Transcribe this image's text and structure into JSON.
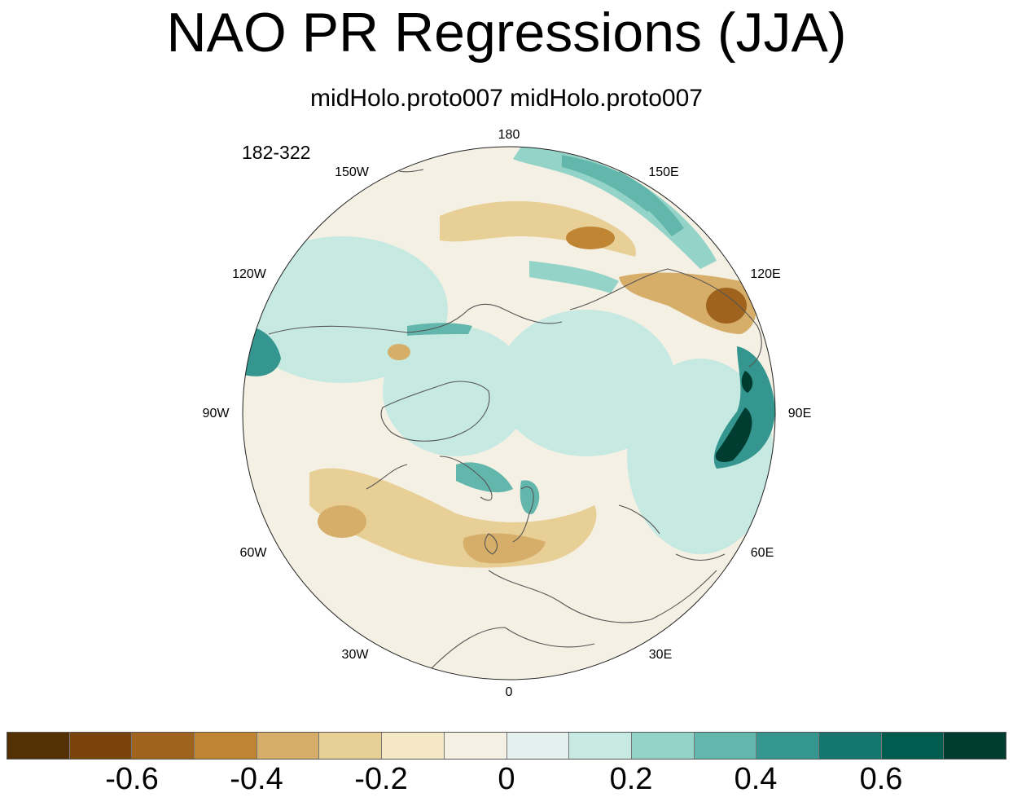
{
  "title": "NAO PR Regressions (JJA)",
  "subtitle": "midHolo.proto007  midHolo.proto007",
  "period_label": "182-322",
  "longitude_labels": [
    "180",
    "150E",
    "120E",
    "90E",
    "60E",
    "30E",
    "0",
    "30W",
    "60W",
    "90W",
    "120W",
    "150W"
  ],
  "colorbar": {
    "colors": [
      "#543005",
      "#7b430c",
      "#a0631d",
      "#c08533",
      "#d6ae6a",
      "#e8cf96",
      "#f5e8c4",
      "#f5f0e4",
      "#e3f0ee",
      "#c6e9e2",
      "#93d3c8",
      "#63b6ab",
      "#34968e",
      "#14766e",
      "#015c50",
      "#003c30"
    ],
    "tick_labels": [
      "-0.6",
      "-0.4",
      "-0.2",
      "0",
      "0.2",
      "0.4",
      "0.6"
    ]
  },
  "map": {
    "projection": "north polar stereographic",
    "background": "#f5f0e4",
    "coast_color": "#555555",
    "regions": [
      {
        "name": "north-pacific-wet-band",
        "color": "#93d3c8"
      },
      {
        "name": "north-pacific-strong-wet",
        "color": "#63b6ab"
      },
      {
        "name": "siberia-dry-band",
        "color": "#e8cf96"
      },
      {
        "name": "siberia-dry-core",
        "color": "#c08533"
      },
      {
        "name": "east-asia-dry",
        "color": "#d6ae6a"
      },
      {
        "name": "east-asia-dry-core",
        "color": "#a0631d"
      },
      {
        "name": "south-asia-wet",
        "color": "#34968e"
      },
      {
        "name": "south-asia-wet-core",
        "color": "#003c30"
      },
      {
        "name": "europe-dry",
        "color": "#e8cf96"
      },
      {
        "name": "europe-dry-core",
        "color": "#d6ae6a"
      },
      {
        "name": "atlantic-dry",
        "color": "#e8cf96"
      },
      {
        "name": "arctic-wet",
        "color": "#c6e9e2"
      },
      {
        "name": "scandinavia-wet",
        "color": "#63b6ab"
      },
      {
        "name": "north-america-wet",
        "color": "#c6e9e2"
      },
      {
        "name": "west-pacific-wet",
        "color": "#34968e"
      }
    ]
  }
}
